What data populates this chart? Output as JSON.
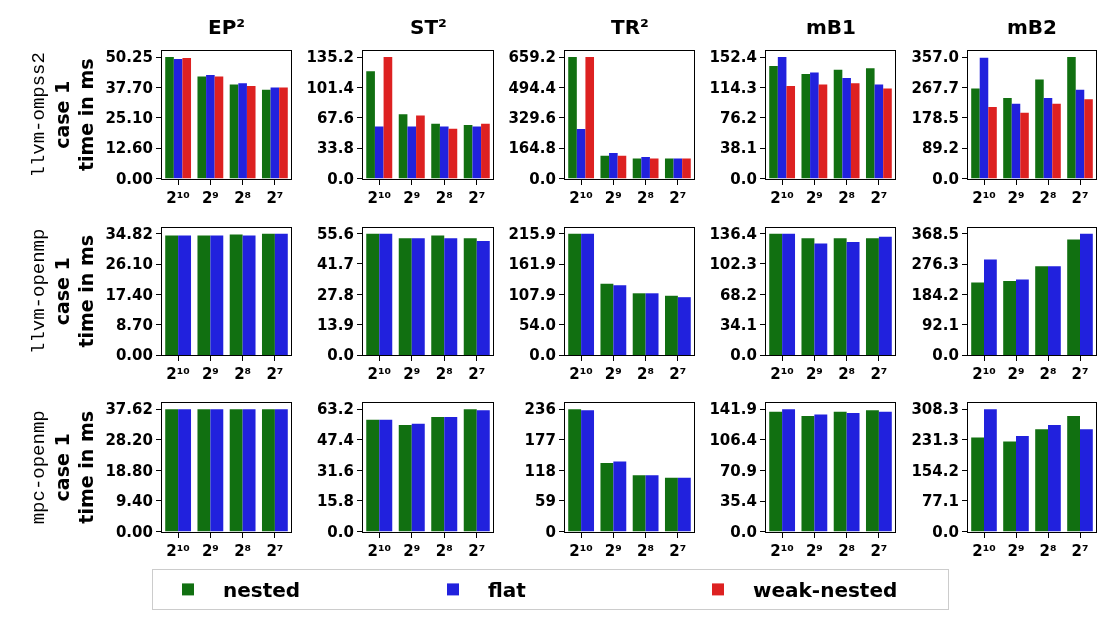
{
  "chart_data": [
    {
      "type": "bar",
      "title": "EP²",
      "ylabel": "llvm-ompss2\ncase 1\ntime in ms",
      "legend": "bottom",
      "categories": [
        "2¹⁰",
        "2⁹",
        "2⁸",
        "2⁷"
      ],
      "ylim": [
        0,
        52.76
      ],
      "yticks": [
        {
          "value": 0,
          "label": "0.00"
        },
        {
          "value": 12.6,
          "label": "12.60"
        },
        {
          "value": 25.1,
          "label": "25.10"
        },
        {
          "value": 37.7,
          "label": "37.70"
        },
        {
          "value": 50.25,
          "label": "50.25"
        }
      ],
      "series": [
        {
          "name": "nested",
          "color": "#117011",
          "values": [
            50.25,
            42.2,
            38.9,
            36.7
          ]
        },
        {
          "name": "flat",
          "color": "#2121dd",
          "values": [
            49.5,
            42.8,
            39.4,
            37.7
          ]
        },
        {
          "name": "weak-nested",
          "color": "#dd2121",
          "values": [
            49.9,
            42.2,
            38.3,
            37.7
          ]
        }
      ]
    },
    {
      "type": "bar",
      "title": "ST²",
      "categories": [
        "2¹⁰",
        "2⁹",
        "2⁸",
        "2⁷"
      ],
      "ylim": [
        0,
        141.96
      ],
      "yticks": [
        {
          "value": 0,
          "label": "0.0"
        },
        {
          "value": 33.8,
          "label": "33.8"
        },
        {
          "value": 67.6,
          "label": "67.6"
        },
        {
          "value": 101.4,
          "label": "101.4"
        },
        {
          "value": 135.2,
          "label": "135.2"
        }
      ],
      "series": [
        {
          "color": "#117011",
          "values": [
            119.5,
            71.7,
            61.1,
            59.6
          ]
        },
        {
          "color": "#2121dd",
          "values": [
            58.0,
            58.0,
            58.0,
            58.0
          ]
        },
        {
          "color": "#dd2121",
          "values": [
            135.2,
            70.1,
            55.3,
            61.1
          ]
        }
      ]
    },
    {
      "type": "bar",
      "title": "TR²",
      "categories": [
        "2¹⁰",
        "2⁹",
        "2⁸",
        "2⁷"
      ],
      "ylim": [
        0,
        692.16
      ],
      "yticks": [
        {
          "value": 0,
          "label": "0.0"
        },
        {
          "value": 164.8,
          "label": "164.8"
        },
        {
          "value": 329.6,
          "label": "329.6"
        },
        {
          "value": 494.4,
          "label": "494.4"
        },
        {
          "value": 659.2,
          "label": "659.2"
        }
      ],
      "series": [
        {
          "color": "#117011",
          "values": [
            659.2,
            124,
            109,
            109
          ]
        },
        {
          "color": "#2121dd",
          "values": [
            269,
            138,
            117,
            109
          ]
        },
        {
          "color": "#dd2121",
          "values": [
            659.2,
            124,
            109,
            109
          ]
        }
      ]
    },
    {
      "type": "bar",
      "title": "mB1",
      "categories": [
        "2¹⁰",
        "2⁹",
        "2⁸",
        "2⁷"
      ],
      "ylim": [
        0,
        160.02
      ],
      "yticks": [
        {
          "value": 0,
          "label": "0.0"
        },
        {
          "value": 38.1,
          "label": "38.1"
        },
        {
          "value": 76.2,
          "label": "76.2"
        },
        {
          "value": 114.3,
          "label": "114.3"
        },
        {
          "value": 152.4,
          "label": "152.4"
        }
      ],
      "series": [
        {
          "color": "#117011",
          "values": [
            141.3,
            131.2,
            136.5,
            138.3
          ]
        },
        {
          "color": "#2121dd",
          "values": [
            152.4,
            133.0,
            126.3,
            118.0
          ]
        },
        {
          "color": "#dd2121",
          "values": [
            116.2,
            118.0,
            119.7,
            113.1
          ]
        }
      ]
    },
    {
      "type": "bar",
      "title": "mB2",
      "categories": [
        "2¹⁰",
        "2⁹",
        "2⁸",
        "2⁷"
      ],
      "ylim": [
        0,
        374.85
      ],
      "yticks": [
        {
          "value": 0,
          "label": "0.0"
        },
        {
          "value": 89.2,
          "label": "89.2"
        },
        {
          "value": 178.5,
          "label": "178.5"
        },
        {
          "value": 267.7,
          "label": "267.7"
        },
        {
          "value": 357.0,
          "label": "357.0"
        }
      ],
      "series": [
        {
          "color": "#117011",
          "values": [
            265,
            237,
            291,
            357
          ]
        },
        {
          "color": "#2121dd",
          "values": [
            355,
            220,
            237,
            261
          ]
        },
        {
          "color": "#dd2121",
          "values": [
            210,
            193.5,
            220,
            233
          ]
        }
      ]
    },
    {
      "type": "bar",
      "ylabel": "llvm-openmp\ncase 1\ntime in ms",
      "categories": [
        "2¹⁰",
        "2⁹",
        "2⁸",
        "2⁷"
      ],
      "ylim": [
        0,
        36.56
      ],
      "yticks": [
        {
          "value": 0,
          "label": "0.00"
        },
        {
          "value": 8.7,
          "label": "8.70"
        },
        {
          "value": 17.4,
          "label": "17.40"
        },
        {
          "value": 26.1,
          "label": "26.10"
        },
        {
          "value": 34.82,
          "label": "34.82"
        }
      ],
      "series": [
        {
          "color": "#117011",
          "values": [
            34.3,
            34.3,
            34.6,
            34.8
          ]
        },
        {
          "color": "#2121dd",
          "values": [
            34.3,
            34.3,
            34.3,
            34.8
          ]
        }
      ]
    },
    {
      "type": "bar",
      "categories": [
        "2¹⁰",
        "2⁹",
        "2⁸",
        "2⁷"
      ],
      "ylim": [
        0,
        58.38
      ],
      "yticks": [
        {
          "value": 0,
          "label": "0.0"
        },
        {
          "value": 13.9,
          "label": "13.9"
        },
        {
          "value": 27.8,
          "label": "27.8"
        },
        {
          "value": 41.7,
          "label": "41.7"
        },
        {
          "value": 55.6,
          "label": "55.6"
        }
      ],
      "series": [
        {
          "color": "#117011",
          "values": [
            55.6,
            53.5,
            54.8,
            53.5
          ]
        },
        {
          "color": "#2121dd",
          "values": [
            55.6,
            53.5,
            53.5,
            52.2
          ]
        }
      ]
    },
    {
      "type": "bar",
      "categories": [
        "2¹⁰",
        "2⁹",
        "2⁸",
        "2⁷"
      ],
      "ylim": [
        0,
        226.7
      ],
      "yticks": [
        {
          "value": 0,
          "label": "0.0"
        },
        {
          "value": 54.0,
          "label": "54.0"
        },
        {
          "value": 107.9,
          "label": "107.9"
        },
        {
          "value": 161.9,
          "label": "161.9"
        },
        {
          "value": 215.9,
          "label": "215.9"
        }
      ],
      "series": [
        {
          "color": "#117011",
          "values": [
            215.9,
            126.6,
            109.8,
            105.4
          ]
        },
        {
          "color": "#2121dd",
          "values": [
            215.9,
            124.1,
            109.8,
            102.9
          ]
        }
      ]
    },
    {
      "type": "bar",
      "categories": [
        "2¹⁰",
        "2⁹",
        "2⁸",
        "2⁷"
      ],
      "ylim": [
        0,
        143.22
      ],
      "yticks": [
        {
          "value": 0,
          "label": "0.0"
        },
        {
          "value": 34.1,
          "label": "34.1"
        },
        {
          "value": 68.2,
          "label": "68.2"
        },
        {
          "value": 102.3,
          "label": "102.3"
        },
        {
          "value": 136.4,
          "label": "136.4"
        }
      ],
      "series": [
        {
          "color": "#117011",
          "values": [
            136.4,
            131.3,
            131.3,
            131.3
          ]
        },
        {
          "color": "#2121dd",
          "values": [
            136.4,
            125.3,
            126.9,
            132.9
          ]
        }
      ]
    },
    {
      "type": "bar",
      "categories": [
        "2¹⁰",
        "2⁹",
        "2⁸",
        "2⁷"
      ],
      "ylim": [
        0,
        386.93
      ],
      "yticks": [
        {
          "value": 0,
          "label": "0.0"
        },
        {
          "value": 92.1,
          "label": "92.1"
        },
        {
          "value": 184.2,
          "label": "184.2"
        },
        {
          "value": 276.3,
          "label": "276.3"
        },
        {
          "value": 368.5,
          "label": "368.5"
        }
      ],
      "series": [
        {
          "color": "#117011",
          "values": [
            220.5,
            224.7,
            269.4,
            350.4
          ]
        },
        {
          "color": "#2121dd",
          "values": [
            289.7,
            229.0,
            269.4,
            368.5
          ]
        }
      ]
    },
    {
      "type": "bar",
      "ylabel": "mpc-openmp\ncase 1\ntime in ms",
      "categories": [
        "2¹⁰",
        "2⁹",
        "2⁸",
        "2⁷"
      ],
      "ylim": [
        0,
        39.5
      ],
      "yticks": [
        {
          "value": 0,
          "label": "0.00"
        },
        {
          "value": 9.4,
          "label": "9.40"
        },
        {
          "value": 18.8,
          "label": "18.80"
        },
        {
          "value": 28.2,
          "label": "28.20"
        },
        {
          "value": 37.62,
          "label": "37.62"
        }
      ],
      "series": [
        {
          "color": "#117011",
          "values": [
            37.62,
            37.62,
            37.62,
            37.62
          ]
        },
        {
          "color": "#2121dd",
          "values": [
            37.62,
            37.62,
            37.62,
            37.62
          ]
        }
      ]
    },
    {
      "type": "bar",
      "categories": [
        "2¹⁰",
        "2⁹",
        "2⁸",
        "2⁷"
      ],
      "ylim": [
        0,
        66.36
      ],
      "yticks": [
        {
          "value": 0,
          "label": "0.0"
        },
        {
          "value": 15.8,
          "label": "15.8"
        },
        {
          "value": 31.6,
          "label": "31.6"
        },
        {
          "value": 47.4,
          "label": "47.4"
        },
        {
          "value": 63.2,
          "label": "63.2"
        }
      ],
      "series": [
        {
          "color": "#117011",
          "values": [
            57.7,
            55.0,
            59.2,
            63.2
          ]
        },
        {
          "color": "#2121dd",
          "values": [
            57.7,
            55.7,
            59.2,
            62.6
          ]
        }
      ]
    },
    {
      "type": "bar",
      "categories": [
        "2¹⁰",
        "2⁹",
        "2⁸",
        "2⁷"
      ],
      "ylim": [
        0,
        247.8
      ],
      "yticks": [
        0,
        59,
        118,
        177,
        236
      ],
      "series": [
        {
          "color": "#117011",
          "values": [
            236,
            132,
            108.5,
            103.7
          ]
        },
        {
          "color": "#2121dd",
          "values": [
            234,
            135,
            108.5,
            103.7
          ]
        }
      ]
    },
    {
      "type": "bar",
      "categories": [
        "2¹⁰",
        "2⁹",
        "2⁸",
        "2⁷"
      ],
      "ylim": [
        0,
        149.0
      ],
      "yticks": [
        {
          "value": 0,
          "label": "0.0"
        },
        {
          "value": 35.4,
          "label": "35.4"
        },
        {
          "value": 70.9,
          "label": "70.9"
        },
        {
          "value": 106.4,
          "label": "106.4"
        },
        {
          "value": 141.9,
          "label": "141.9"
        }
      ],
      "series": [
        {
          "color": "#117011",
          "values": [
            139.0,
            134.1,
            139.0,
            140.7
          ]
        },
        {
          "color": "#2121dd",
          "values": [
            141.9,
            135.8,
            137.4,
            139.0
          ]
        }
      ]
    },
    {
      "type": "bar",
      "categories": [
        "2¹⁰",
        "2⁹",
        "2⁸",
        "2⁷"
      ],
      "ylim": [
        0,
        323.7
      ],
      "yticks": [
        {
          "value": 0,
          "label": "0.0"
        },
        {
          "value": 77.1,
          "label": "77.1"
        },
        {
          "value": 154.2,
          "label": "154.2"
        },
        {
          "value": 231.3,
          "label": "231.3"
        },
        {
          "value": 308.3,
          "label": "308.3"
        }
      ],
      "series": [
        {
          "color": "#117011",
          "values": [
            237,
            227,
            257.6,
            291.4
          ]
        },
        {
          "color": "#2121dd",
          "values": [
            308.3,
            240.6,
            268.3,
            257.6
          ]
        }
      ]
    }
  ]
}
